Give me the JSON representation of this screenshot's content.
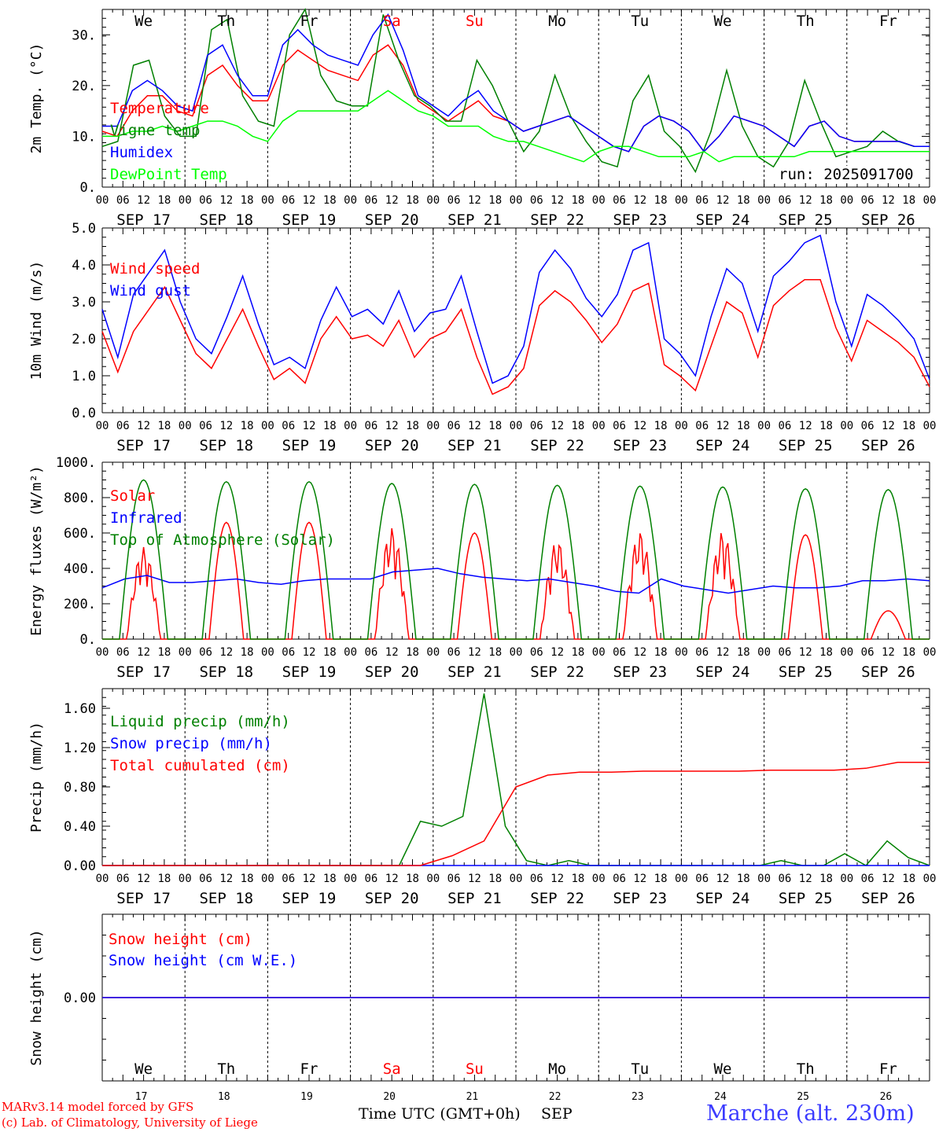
{
  "page": {
    "run_label": "run: 2025091700",
    "credit_line1": "MARv3.14 model forced by GFS",
    "credit_line2": "(c) Lab. of Climatology, University of Liege",
    "station": "Marche (alt. 230m)",
    "xlabel_main": "Time UTC (GMT+0h)",
    "xlabel_month": "SEP"
  },
  "days": {
    "weekdays": [
      "We",
      "Th",
      "Fr",
      "Sa",
      "Su",
      "Mo",
      "Tu",
      "We",
      "Th",
      "Fr"
    ],
    "weekend_color": "#ff0000",
    "weekday_color": "#000000",
    "weekend_flags": [
      false,
      false,
      false,
      true,
      true,
      false,
      false,
      false,
      false,
      false
    ],
    "dates": [
      "SEP 17",
      "SEP 18",
      "SEP 19",
      "SEP 20",
      "SEP 21",
      "SEP 22",
      "SEP 23",
      "SEP 24",
      "SEP 25",
      "SEP 26"
    ],
    "day_numbers": [
      "17",
      "18",
      "19",
      "20",
      "21",
      "22",
      "23",
      "24",
      "25",
      "26"
    ],
    "hour_ticks": [
      "00",
      "06",
      "12",
      "18"
    ],
    "final_tick": "00"
  },
  "chart_data": [
    {
      "id": "temp",
      "type": "line",
      "ylabel": "2m Temp. (°C)",
      "ylim": [
        0,
        35
      ],
      "yticks": [
        0,
        10,
        20,
        30
      ],
      "ytick_labels": [
        "0.",
        "10.",
        "20.",
        "30."
      ],
      "series": [
        {
          "name": "Temperature",
          "color": "#ff0000",
          "values": [
            11,
            10,
            15,
            18,
            18,
            15,
            14,
            22,
            24,
            20,
            17,
            17,
            24,
            27,
            25,
            23,
            22,
            21,
            26,
            28,
            24,
            17,
            15,
            13,
            15,
            17,
            14,
            13,
            11,
            12,
            13,
            14,
            12,
            10,
            8,
            7,
            12,
            14,
            13,
            11,
            7,
            10,
            14,
            13,
            12,
            10,
            8,
            12,
            13,
            10,
            9,
            9,
            9,
            9,
            8,
            8
          ]
        },
        {
          "name": "Vigne temp",
          "color": "#008000",
          "values": [
            8,
            9,
            24,
            25,
            14,
            10,
            10,
            31,
            33,
            18,
            13,
            12,
            30,
            35,
            22,
            17,
            16,
            16,
            34,
            25,
            18,
            16,
            13,
            13,
            25,
            20,
            13,
            7,
            11,
            22,
            14,
            9,
            5,
            4,
            17,
            22,
            11,
            8,
            3,
            11,
            23,
            12,
            6,
            4,
            9,
            21,
            13,
            6,
            7,
            8,
            11,
            9,
            8,
            8
          ]
        },
        {
          "name": "Humidex",
          "color": "#0000ff",
          "values": [
            12,
            12,
            19,
            21,
            19,
            16,
            15,
            26,
            28,
            22,
            18,
            18,
            28,
            31,
            28,
            26,
            25,
            24,
            30,
            34,
            27,
            18,
            16,
            14,
            17,
            19,
            15,
            13,
            11,
            12,
            13,
            14,
            12,
            10,
            8,
            7,
            12,
            14,
            13,
            11,
            7,
            10,
            14,
            13,
            12,
            10,
            8,
            12,
            13,
            10,
            9,
            9,
            9,
            9,
            8,
            8
          ]
        },
        {
          "name": "DewPoint Temp",
          "color": "#00ff00",
          "values": [
            10,
            10,
            11,
            11,
            12,
            11,
            12,
            13,
            13,
            12,
            10,
            9,
            13,
            15,
            15,
            15,
            15,
            15,
            17,
            19,
            17,
            15,
            14,
            12,
            12,
            12,
            10,
            9,
            9,
            8,
            7,
            6,
            5,
            7,
            8,
            8,
            7,
            6,
            6,
            6,
            7,
            5,
            6,
            6,
            6,
            6,
            6,
            7,
            7,
            7,
            7,
            7,
            7,
            7,
            7,
            7
          ]
        }
      ]
    },
    {
      "id": "wind",
      "type": "line",
      "ylabel": "10m Wind (m/s)",
      "ylim": [
        0,
        5
      ],
      "yticks": [
        0,
        1,
        2,
        3,
        4,
        5
      ],
      "ytick_labels": [
        "0.0",
        "1.0",
        "2.0",
        "3.0",
        "4.0",
        "5.0"
      ],
      "series": [
        {
          "name": "Wind speed",
          "color": "#ff0000",
          "values": [
            2.2,
            1.1,
            2.2,
            2.8,
            3.4,
            2.5,
            1.6,
            1.2,
            2.0,
            2.8,
            1.8,
            0.9,
            1.2,
            0.8,
            2.0,
            2.6,
            2.0,
            2.1,
            1.8,
            2.5,
            1.5,
            2.0,
            2.2,
            2.8,
            1.5,
            0.5,
            0.7,
            1.2,
            2.9,
            3.3,
            3.0,
            2.5,
            1.9,
            2.4,
            3.3,
            3.5,
            1.3,
            1.0,
            0.6,
            1.8,
            3.0,
            2.7,
            1.5,
            2.9,
            3.3,
            3.6,
            3.6,
            2.3,
            1.4,
            2.5,
            2.2,
            1.9,
            1.5,
            0.7
          ]
        },
        {
          "name": "Wind gust",
          "color": "#0000ff",
          "values": [
            2.8,
            1.5,
            3.2,
            3.8,
            4.4,
            3.0,
            2.0,
            1.6,
            2.6,
            3.7,
            2.4,
            1.3,
            1.5,
            1.2,
            2.5,
            3.4,
            2.6,
            2.8,
            2.4,
            3.3,
            2.2,
            2.7,
            2.8,
            3.7,
            2.2,
            0.8,
            1.0,
            1.8,
            3.8,
            4.4,
            3.9,
            3.1,
            2.6,
            3.2,
            4.4,
            4.6,
            2.0,
            1.6,
            1.0,
            2.6,
            3.9,
            3.5,
            2.2,
            3.7,
            4.1,
            4.6,
            4.8,
            3.0,
            1.8,
            3.2,
            2.9,
            2.5,
            2.0,
            0.9
          ]
        }
      ]
    },
    {
      "id": "energy",
      "type": "line",
      "ylabel": "Energy fluxes (W/m²)",
      "ylim": [
        0,
        1000
      ],
      "yticks": [
        0,
        200,
        400,
        600,
        800,
        1000
      ],
      "ytick_labels": [
        "0.",
        "200.",
        "400.",
        "600.",
        "800.",
        "1000."
      ],
      "series": [
        {
          "name": "Solar",
          "color": "#ff0000",
          "peaks": [
            520,
            660,
            660,
            630,
            600,
            560,
            610,
            610,
            590,
            160
          ]
        },
        {
          "name": "Infrared",
          "color": "#0000ff",
          "values": [
            290,
            340,
            360,
            320,
            320,
            330,
            340,
            320,
            310,
            330,
            340,
            340,
            340,
            380,
            390,
            400,
            370,
            350,
            340,
            330,
            340,
            320,
            300,
            270,
            260,
            340,
            300,
            280,
            260,
            280,
            300,
            290,
            290,
            300,
            330,
            330,
            340,
            330
          ]
        },
        {
          "name": "Top of Atmosphere (Solar)",
          "color": "#008000",
          "peaks": [
            900,
            890,
            890,
            880,
            875,
            870,
            865,
            860,
            850,
            845
          ]
        }
      ]
    },
    {
      "id": "precip",
      "type": "line",
      "ylabel": "Precip (mm/h)",
      "ylim": [
        0,
        1.8
      ],
      "yticks": [
        0,
        0.4,
        0.8,
        1.2,
        1.6
      ],
      "ytick_labels": [
        "0.00",
        "0.40",
        "0.80",
        "1.20",
        "1.60"
      ],
      "series": [
        {
          "name": "Liquid precip (mm/h)",
          "color": "#008000",
          "values": [
            0,
            0,
            0,
            0,
            0,
            0,
            0,
            0,
            0,
            0,
            0,
            0,
            0,
            0,
            0,
            0.45,
            0.4,
            0.5,
            1.75,
            0.4,
            0.05,
            0,
            0.05,
            0,
            0,
            0,
            0,
            0,
            0,
            0,
            0,
            0,
            0.05,
            0,
            0,
            0.12,
            0,
            0.25,
            0.08,
            0
          ]
        },
        {
          "name": "Snow precip (mm/h)",
          "color": "#0000ff",
          "values": [
            0,
            0
          ]
        },
        {
          "name": "Total cumulated (cm)",
          "color": "#ff0000",
          "values": [
            0,
            0,
            0,
            0,
            0,
            0,
            0,
            0,
            0,
            0,
            0,
            0.1,
            0.25,
            0.8,
            0.92,
            0.95,
            0.95,
            0.96,
            0.96,
            0.96,
            0.96,
            0.97,
            0.97,
            0.97,
            0.99,
            1.05,
            1.05
          ]
        }
      ]
    },
    {
      "id": "snow",
      "type": "line",
      "ylabel": "Snow height (cm)",
      "ylim": [
        -1,
        1
      ],
      "yticks": [
        0
      ],
      "ytick_labels": [
        "0.00"
      ],
      "series": [
        {
          "name": "Snow height (cm)",
          "color": "#ff0000",
          "values": [
            0,
            0
          ]
        },
        {
          "name": "Snow height (cm W.E.)",
          "color": "#0000ff",
          "values": [
            0,
            0
          ]
        }
      ]
    }
  ]
}
